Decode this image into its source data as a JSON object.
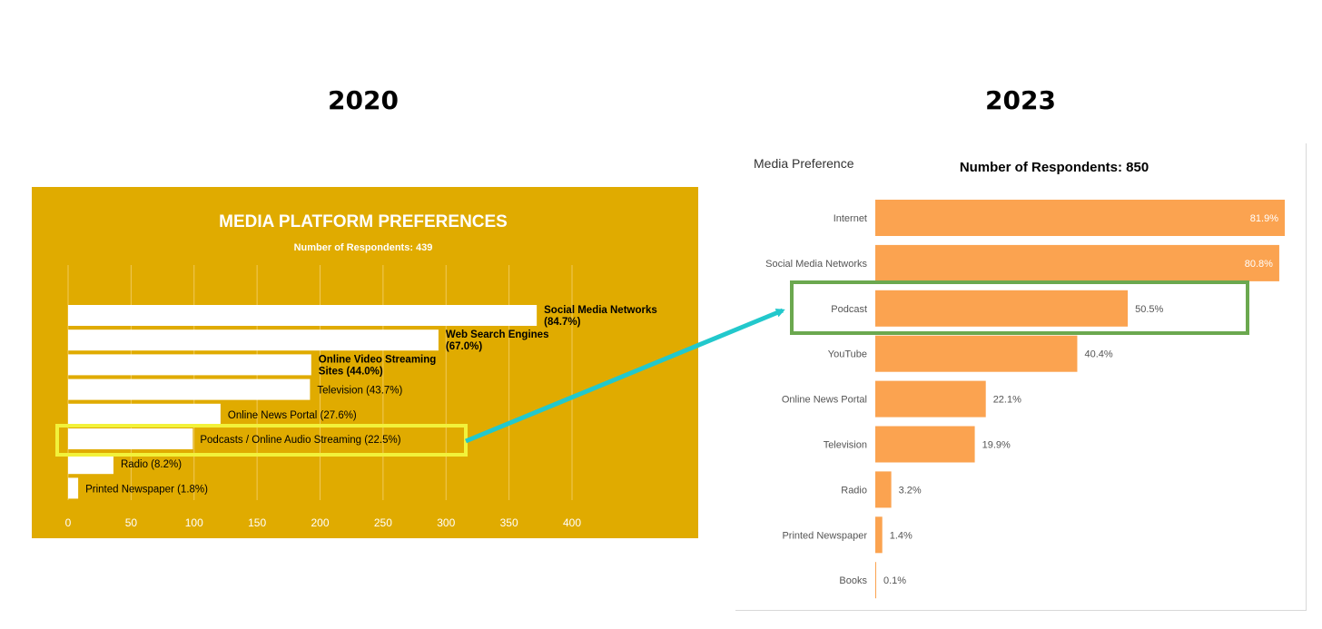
{
  "header": {
    "year_left": "2020",
    "year_right": "2023"
  },
  "colors": {
    "panel_2020_bg": "#E0AB00",
    "bars_2020": "#ffffff",
    "bars_2023": "#FBA350",
    "highlight_2020": "#F2F23A",
    "highlight_2023": "#6BA84F",
    "arrow": "#22C8CC"
  },
  "chart_data": [
    {
      "type": "bar",
      "orientation": "horizontal",
      "title": "MEDIA PLATFORM PREFERENCES",
      "subtitle": "Number of Respondents: 439",
      "xlim": [
        0,
        400
      ],
      "xticks": [
        0,
        50,
        100,
        150,
        200,
        250,
        300,
        350,
        400
      ],
      "grid": true,
      "categories": [
        "Social Media Networks",
        "Web Search Engines",
        "Online Video Streaming Sites",
        "Television",
        "Online News Portal",
        "Podcasts / Online Audio Streaming",
        "Radio",
        "Printed Newspaper"
      ],
      "values": [
        372,
        294,
        193,
        192,
        121,
        99,
        36,
        8
      ],
      "percents": [
        "84.7%",
        "67.0%",
        "44.0%",
        "43.7%",
        "27.6%",
        "22.5%",
        "8.2%",
        "1.8%"
      ],
      "labels": [
        [
          "Social Media Networks",
          "(84.7%)"
        ],
        [
          "Web Search Engines",
          "(67.0%)"
        ],
        [
          "Online Video Streaming",
          "Sites    (44.0%)"
        ],
        [
          "Television    (43.7%)"
        ],
        [
          "Online News Portal    (27.6%)"
        ],
        [
          "Podcasts / Online Audio Streaming    (22.5%)"
        ],
        [
          "Radio    (8.2%)"
        ],
        [
          "Printed Newspaper    (1.8%)"
        ]
      ],
      "bold_rows": [
        0,
        1,
        2
      ],
      "highlighted": "Podcasts / Online Audio Streaming"
    },
    {
      "type": "bar",
      "orientation": "horizontal",
      "title": "Media Preference",
      "subtitle": "Number of Respondents: 850",
      "categories": [
        "Internet",
        "Social Media Networks",
        "Podcast",
        "YouTube",
        "Online News Portal",
        "Television",
        "Radio",
        "Printed Newspaper",
        "Books"
      ],
      "values": [
        81.9,
        80.8,
        50.5,
        40.4,
        22.1,
        19.9,
        3.2,
        1.4,
        0.1
      ],
      "value_labels": [
        "81.9%",
        "80.8%",
        "50.5%",
        "40.4%",
        "22.1%",
        "19.9%",
        "3.2%",
        "1.4%",
        "0.1%"
      ],
      "labels_inside": [
        0,
        1
      ],
      "highlighted": "Podcast"
    }
  ]
}
